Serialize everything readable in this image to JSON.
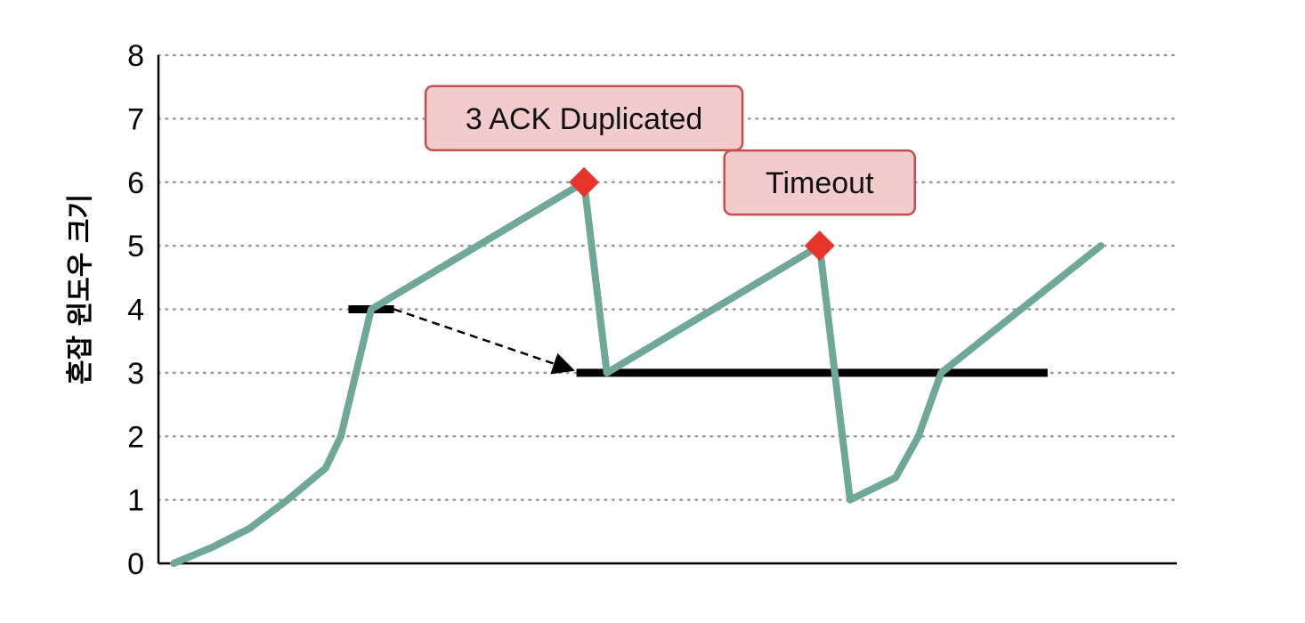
{
  "chart_data": {
    "type": "line",
    "ylabel": "혼잡 윈도우 크기",
    "xlabel": "",
    "title": "",
    "ylim": [
      0,
      8
    ],
    "y_ticks": [
      "0",
      "1",
      "2",
      "3",
      "4",
      "5",
      "6",
      "7",
      "8"
    ],
    "grid": "horizontal-dotted",
    "series": [
      {
        "color": "#6fa899",
        "points": [
          [
            0.0,
            0.0
          ],
          [
            0.5,
            0.25
          ],
          [
            1.0,
            0.55
          ],
          [
            1.5,
            1.0
          ],
          [
            2.0,
            1.5
          ],
          [
            2.2,
            2.0
          ],
          [
            2.5,
            3.5
          ],
          [
            2.6,
            4.0
          ],
          [
            5.4,
            6.0
          ],
          [
            5.7,
            3.0
          ],
          [
            8.5,
            5.0
          ],
          [
            8.9,
            1.0
          ],
          [
            9.5,
            1.35
          ],
          [
            9.8,
            2.0
          ],
          [
            10.1,
            3.0
          ],
          [
            12.2,
            5.0
          ]
        ]
      }
    ],
    "thresholds": [
      {
        "y": 4,
        "x_start": 2.3,
        "x_end": 2.9,
        "color": "#000000"
      },
      {
        "y": 3,
        "x_start": 5.3,
        "x_end": 11.5,
        "color": "#000000"
      }
    ],
    "threshold_arrow": {
      "from": [
        2.9,
        4.0
      ],
      "to": [
        5.3,
        3.0
      ],
      "style": "dashed"
    },
    "markers": [
      {
        "x": 5.4,
        "y": 6.0,
        "shape": "diamond",
        "color": "#e8352b"
      },
      {
        "x": 8.5,
        "y": 5.0,
        "shape": "diamond",
        "color": "#e8352b"
      }
    ],
    "annotations": [
      {
        "text": "3 ACK Duplicated",
        "x": 5.4,
        "y": 6.0,
        "fill": "#f2cccc",
        "stroke": "#c0504d"
      },
      {
        "text": "Timeout",
        "x": 8.5,
        "y": 5.0,
        "fill": "#f2cccc",
        "stroke": "#c0504d"
      }
    ]
  },
  "colors": {
    "line": "#6fa899",
    "marker": "#e8352b",
    "threshold": "#000000",
    "grid": "#9a9a9a",
    "annotation_fill": "#f2cccc",
    "annotation_stroke": "#c0504d"
  }
}
